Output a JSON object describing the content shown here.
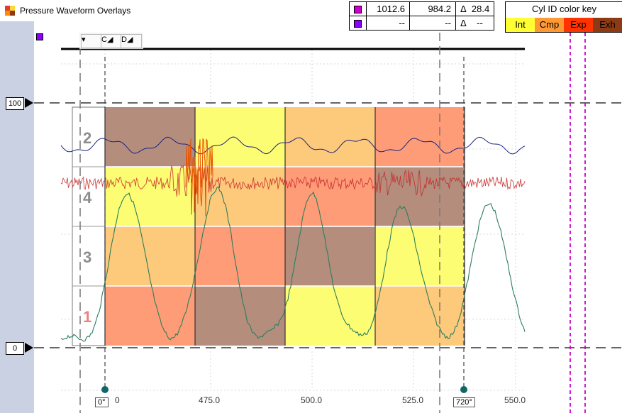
{
  "window": {
    "title": "Pressure Waveform Overlays"
  },
  "cursor_readout": {
    "row1": {
      "swatch": "#cc00cc",
      "a": "1012.6",
      "b": "984.2",
      "delta_symbol": "Δ",
      "delta": "28.4"
    },
    "row2": {
      "swatch": "#8b00ff",
      "a": "--",
      "b": "--",
      "delta_symbol": "Δ",
      "delta": "--"
    }
  },
  "color_key": {
    "title": "Cyl ID color key",
    "items": [
      {
        "label": "Int",
        "color": "#ffff33"
      },
      {
        "label": "Cmp",
        "color": "#ff9933"
      },
      {
        "label": "Exp",
        "color": "#ff3300"
      },
      {
        "label": "Exh",
        "color": "#8b3a14"
      }
    ]
  },
  "reference_levels": {
    "top": "100",
    "bottom": "0"
  },
  "toolbar": {
    "btn_c": "C",
    "btn_d": "D"
  },
  "cylinders": [
    "2",
    "4",
    "3",
    "1"
  ],
  "x_axis": {
    "ticks": [
      "475.0",
      "500.0",
      "525.0",
      "550.0"
    ],
    "partial_tick": "0"
  },
  "degree_markers": {
    "start": "0°",
    "end": "720°"
  },
  "colors": {
    "int": "#fdfd74",
    "cmp": "#fdc97a",
    "exp": "#fe9c78",
    "exh": "#b48d7d",
    "sidebar": "#c9d1e3",
    "cursor_magenta": "#cc00cc"
  }
}
